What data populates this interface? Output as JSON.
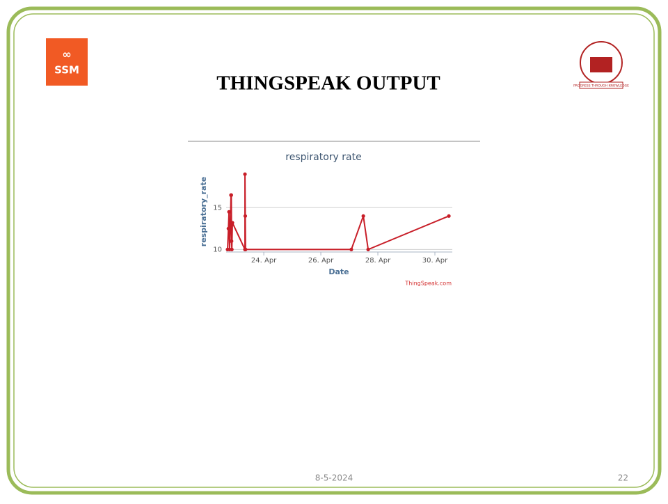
{
  "slide": {
    "title": "THINGSPEAK OUTPUT",
    "date": "8-5-2024",
    "page": "22",
    "logo_left": "SSM",
    "logo_right": "PROGRESS THROUGH KNOWLEDGE"
  },
  "chart_data": {
    "type": "line",
    "title": "respiratory rate",
    "x_label": "Date",
    "y_label": "respiratory_rate",
    "credit": "ThingSpeak.com",
    "x": [
      22.73,
      22.76,
      22.78,
      22.8,
      22.83,
      22.85,
      22.86,
      22.87,
      22.88,
      22.9,
      23.34,
      23.34,
      23.35,
      23.36,
      27.07,
      27.49,
      27.66,
      30.49
    ],
    "series": [
      {
        "name": "respiratory_rate",
        "color": "#c81e28",
        "values": [
          10,
          12.5,
          14.5,
          10,
          13,
          16.5,
          16.5,
          11,
          10,
          13.2,
          10,
          19,
          14,
          10,
          10,
          14,
          10,
          14
        ]
      }
    ],
    "xlim": [
      22.68,
      30.61
    ],
    "xticks": [
      {
        "value": 24,
        "label": "24. Apr"
      },
      {
        "value": 26,
        "label": "26. Apr"
      },
      {
        "value": 28,
        "label": "28. Apr"
      },
      {
        "value": 30,
        "label": "30. Apr"
      }
    ],
    "ylim": [
      9.7,
      19.6
    ],
    "yticks": [
      10,
      15
    ],
    "grid": true
  }
}
